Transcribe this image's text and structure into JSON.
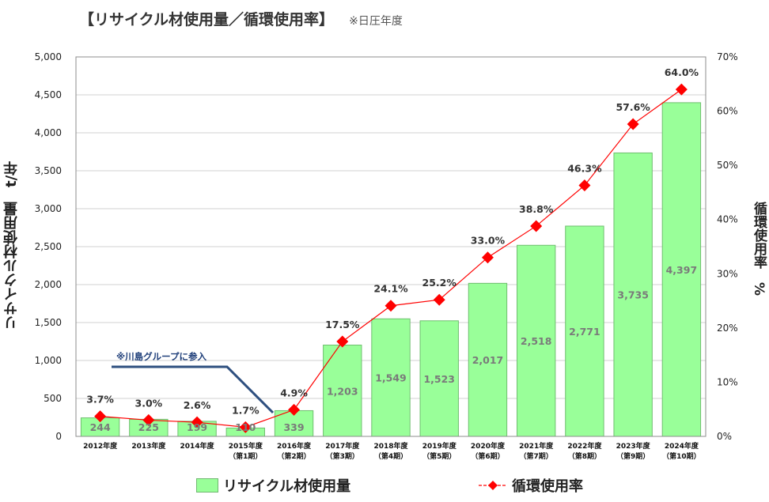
{
  "chart_data": {
    "type": "bar",
    "title": "【リサイクル材使用量／循環使用率】",
    "subtitle": "※日圧年度",
    "ylabel": "リサイクル材使用量　t/年",
    "y2label": "循環使用率　%",
    "ylim": [
      0,
      5000
    ],
    "y2lim": [
      0,
      70
    ],
    "yticks": [
      "0",
      "500",
      "1,000",
      "1,500",
      "2,000",
      "2,500",
      "3,000",
      "3,500",
      "4,000",
      "4,500",
      "5,000"
    ],
    "y2ticks": [
      "0%",
      "10%",
      "20%",
      "30%",
      "40%",
      "50%",
      "60%",
      "70%"
    ],
    "grid": true,
    "legend_position": "bottom",
    "categories": [
      [
        "2012年度"
      ],
      [
        "2013年度"
      ],
      [
        "2014年度"
      ],
      [
        "2015年度",
        "（第1期）"
      ],
      [
        "2016年度",
        "（第2期）"
      ],
      [
        "2017年度",
        "（第3期）"
      ],
      [
        "2018年度",
        "（第4期）"
      ],
      [
        "2019年度",
        "（第5期）"
      ],
      [
        "2020年度",
        "（第6期）"
      ],
      [
        "2021年度",
        "（第7期）"
      ],
      [
        "2022年度",
        "（第8期）"
      ],
      [
        "2023年度",
        "（第9期）"
      ],
      [
        "2024年度",
        "（第10期）"
      ]
    ],
    "series": [
      {
        "name": "リサイクル材使用量",
        "type": "bar",
        "axis": "left",
        "color": "#99ff99",
        "values": [
          244,
          225,
          199,
          110,
          339,
          1203,
          1549,
          1523,
          2017,
          2518,
          2771,
          3735,
          4397
        ],
        "labels": [
          "244",
          "225",
          "199",
          "110",
          "339",
          "1,203",
          "1,549",
          "1,523",
          "2,017",
          "2,518",
          "2,771",
          "3,735",
          "4,397"
        ]
      },
      {
        "name": "循環使用率",
        "type": "line",
        "axis": "right",
        "color": "#ff0000",
        "values": [
          3.7,
          3.0,
          2.6,
          1.7,
          4.9,
          17.5,
          24.1,
          25.2,
          33.0,
          38.8,
          46.3,
          57.6,
          64.0
        ],
        "labels": [
          "3.7%",
          "3.0%",
          "2.6%",
          "1.7%",
          "4.9%",
          "17.5%",
          "24.1%",
          "25.2%",
          "33.0%",
          "38.8%",
          "46.3%",
          "57.6%",
          "64.0%"
        ]
      }
    ],
    "annotations": [
      {
        "text": "※川島グループに参入",
        "color": "#1f3f7a"
      }
    ]
  },
  "legend": {
    "bar_label": "リサイクル材使用量",
    "line_label": "循環使用率"
  }
}
